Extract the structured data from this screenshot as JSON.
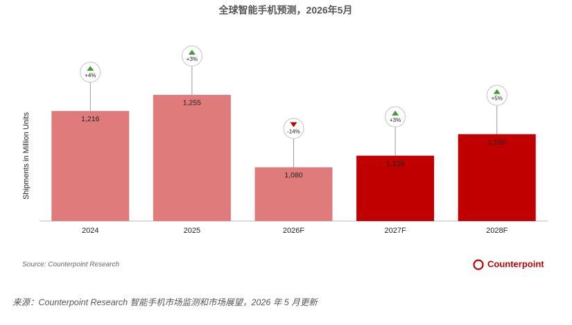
{
  "chart_data": {
    "type": "bar",
    "title": "全球智能手机预测，2026年5月",
    "y_label": "Shipments in Million Units",
    "categories": [
      "2024",
      "2025",
      "2026F",
      "2027F",
      "2028F"
    ],
    "values": [
      1216,
      1255,
      1080,
      1108,
      1160
    ],
    "value_labels": [
      "1,216",
      "1,255",
      "1,080",
      "1,108",
      "1,160"
    ],
    "colors": [
      "#e07b7b",
      "#e07b7b",
      "#e07b7b",
      "#c00000",
      "#c00000"
    ],
    "growth": {
      "values": [
        4,
        3,
        -14,
        3,
        5
      ],
      "value_labels": [
        "+4%",
        "+3%",
        "-14%",
        "+3%",
        "+5%"
      ]
    },
    "ylim": [
      950,
      1300
    ],
    "source": "Source: Counterpoint Research",
    "logo": "Counterpoint"
  },
  "caption": "来源：Counterpoint Research 智能手机市场监测和市场展望，2026 年 5 月更新"
}
